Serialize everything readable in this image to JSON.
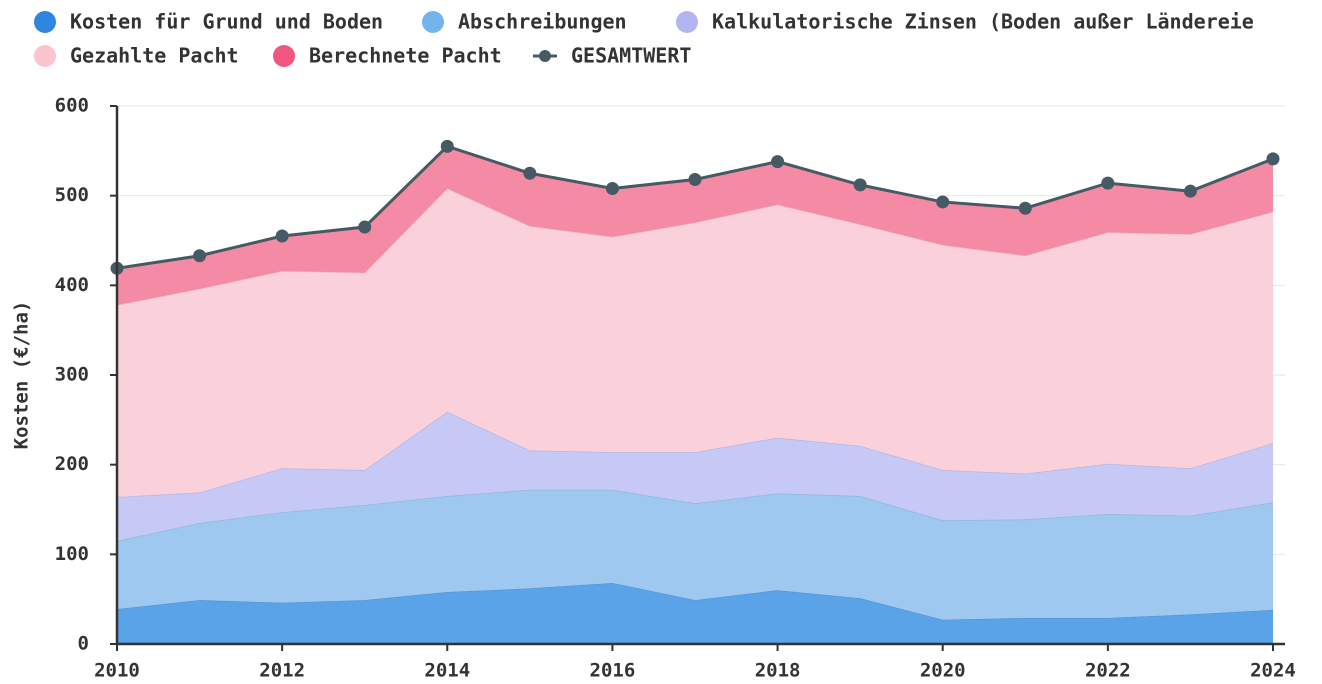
{
  "chart_data": {
    "type": "stacked_area",
    "y_label": "Kosten (€/ha)",
    "x": [
      2010,
      2011,
      2012,
      2013,
      2014,
      2015,
      2016,
      2017,
      2018,
      2019,
      2020,
      2021,
      2022,
      2023,
      2024
    ],
    "xlim": [
      2010,
      2024
    ],
    "xticks": [
      2010,
      2012,
      2014,
      2016,
      2018,
      2020,
      2022,
      2024
    ],
    "ylim": [
      0,
      600
    ],
    "yticks": [
      0,
      100,
      200,
      300,
      400,
      500,
      600
    ],
    "grid": true,
    "series": [
      {
        "name": "Kosten für Grund und Boden",
        "color": "#5ba3e8",
        "legend_color": "#2e86de",
        "values": [
          39,
          49,
          46,
          49,
          58,
          62,
          68,
          49,
          60,
          51,
          27,
          29,
          29,
          33,
          38
        ]
      },
      {
        "name": "Abschreibungen",
        "color": "#9ec8f0",
        "legend_color": "#74b3ec",
        "values": [
          76,
          86,
          101,
          106,
          107,
          110,
          104,
          108,
          108,
          114,
          111,
          110,
          116,
          110,
          120
        ]
      },
      {
        "name": "Kalkulatorische Zinsen (Boden außer Ländereie",
        "color": "#c6c8f5",
        "legend_color": "#b3b5f3",
        "values": [
          49,
          34,
          49,
          39,
          94,
          44,
          42,
          57,
          62,
          56,
          56,
          51,
          56,
          53,
          66
        ]
      },
      {
        "name": "Gezahlte Pacht",
        "color": "#fad1db",
        "legend_color": "#fac4d0",
        "values": [
          214,
          227,
          220,
          220,
          249,
          250,
          240,
          256,
          260,
          247,
          251,
          243,
          258,
          261,
          258
        ]
      },
      {
        "name": "Berechnete Pacht",
        "color": "#f48aa4",
        "legend_color": "#f0577f",
        "values": [
          41,
          37,
          39,
          51,
          47,
          59,
          54,
          48,
          48,
          44,
          48,
          53,
          55,
          48,
          59
        ]
      },
      {
        "name": "GESAMTWERT",
        "color": "#455a64",
        "kind": "line",
        "values": [
          419,
          433,
          455,
          465,
          555,
          525,
          508,
          518,
          538,
          512,
          493,
          486,
          514,
          505,
          541
        ]
      }
    ]
  }
}
